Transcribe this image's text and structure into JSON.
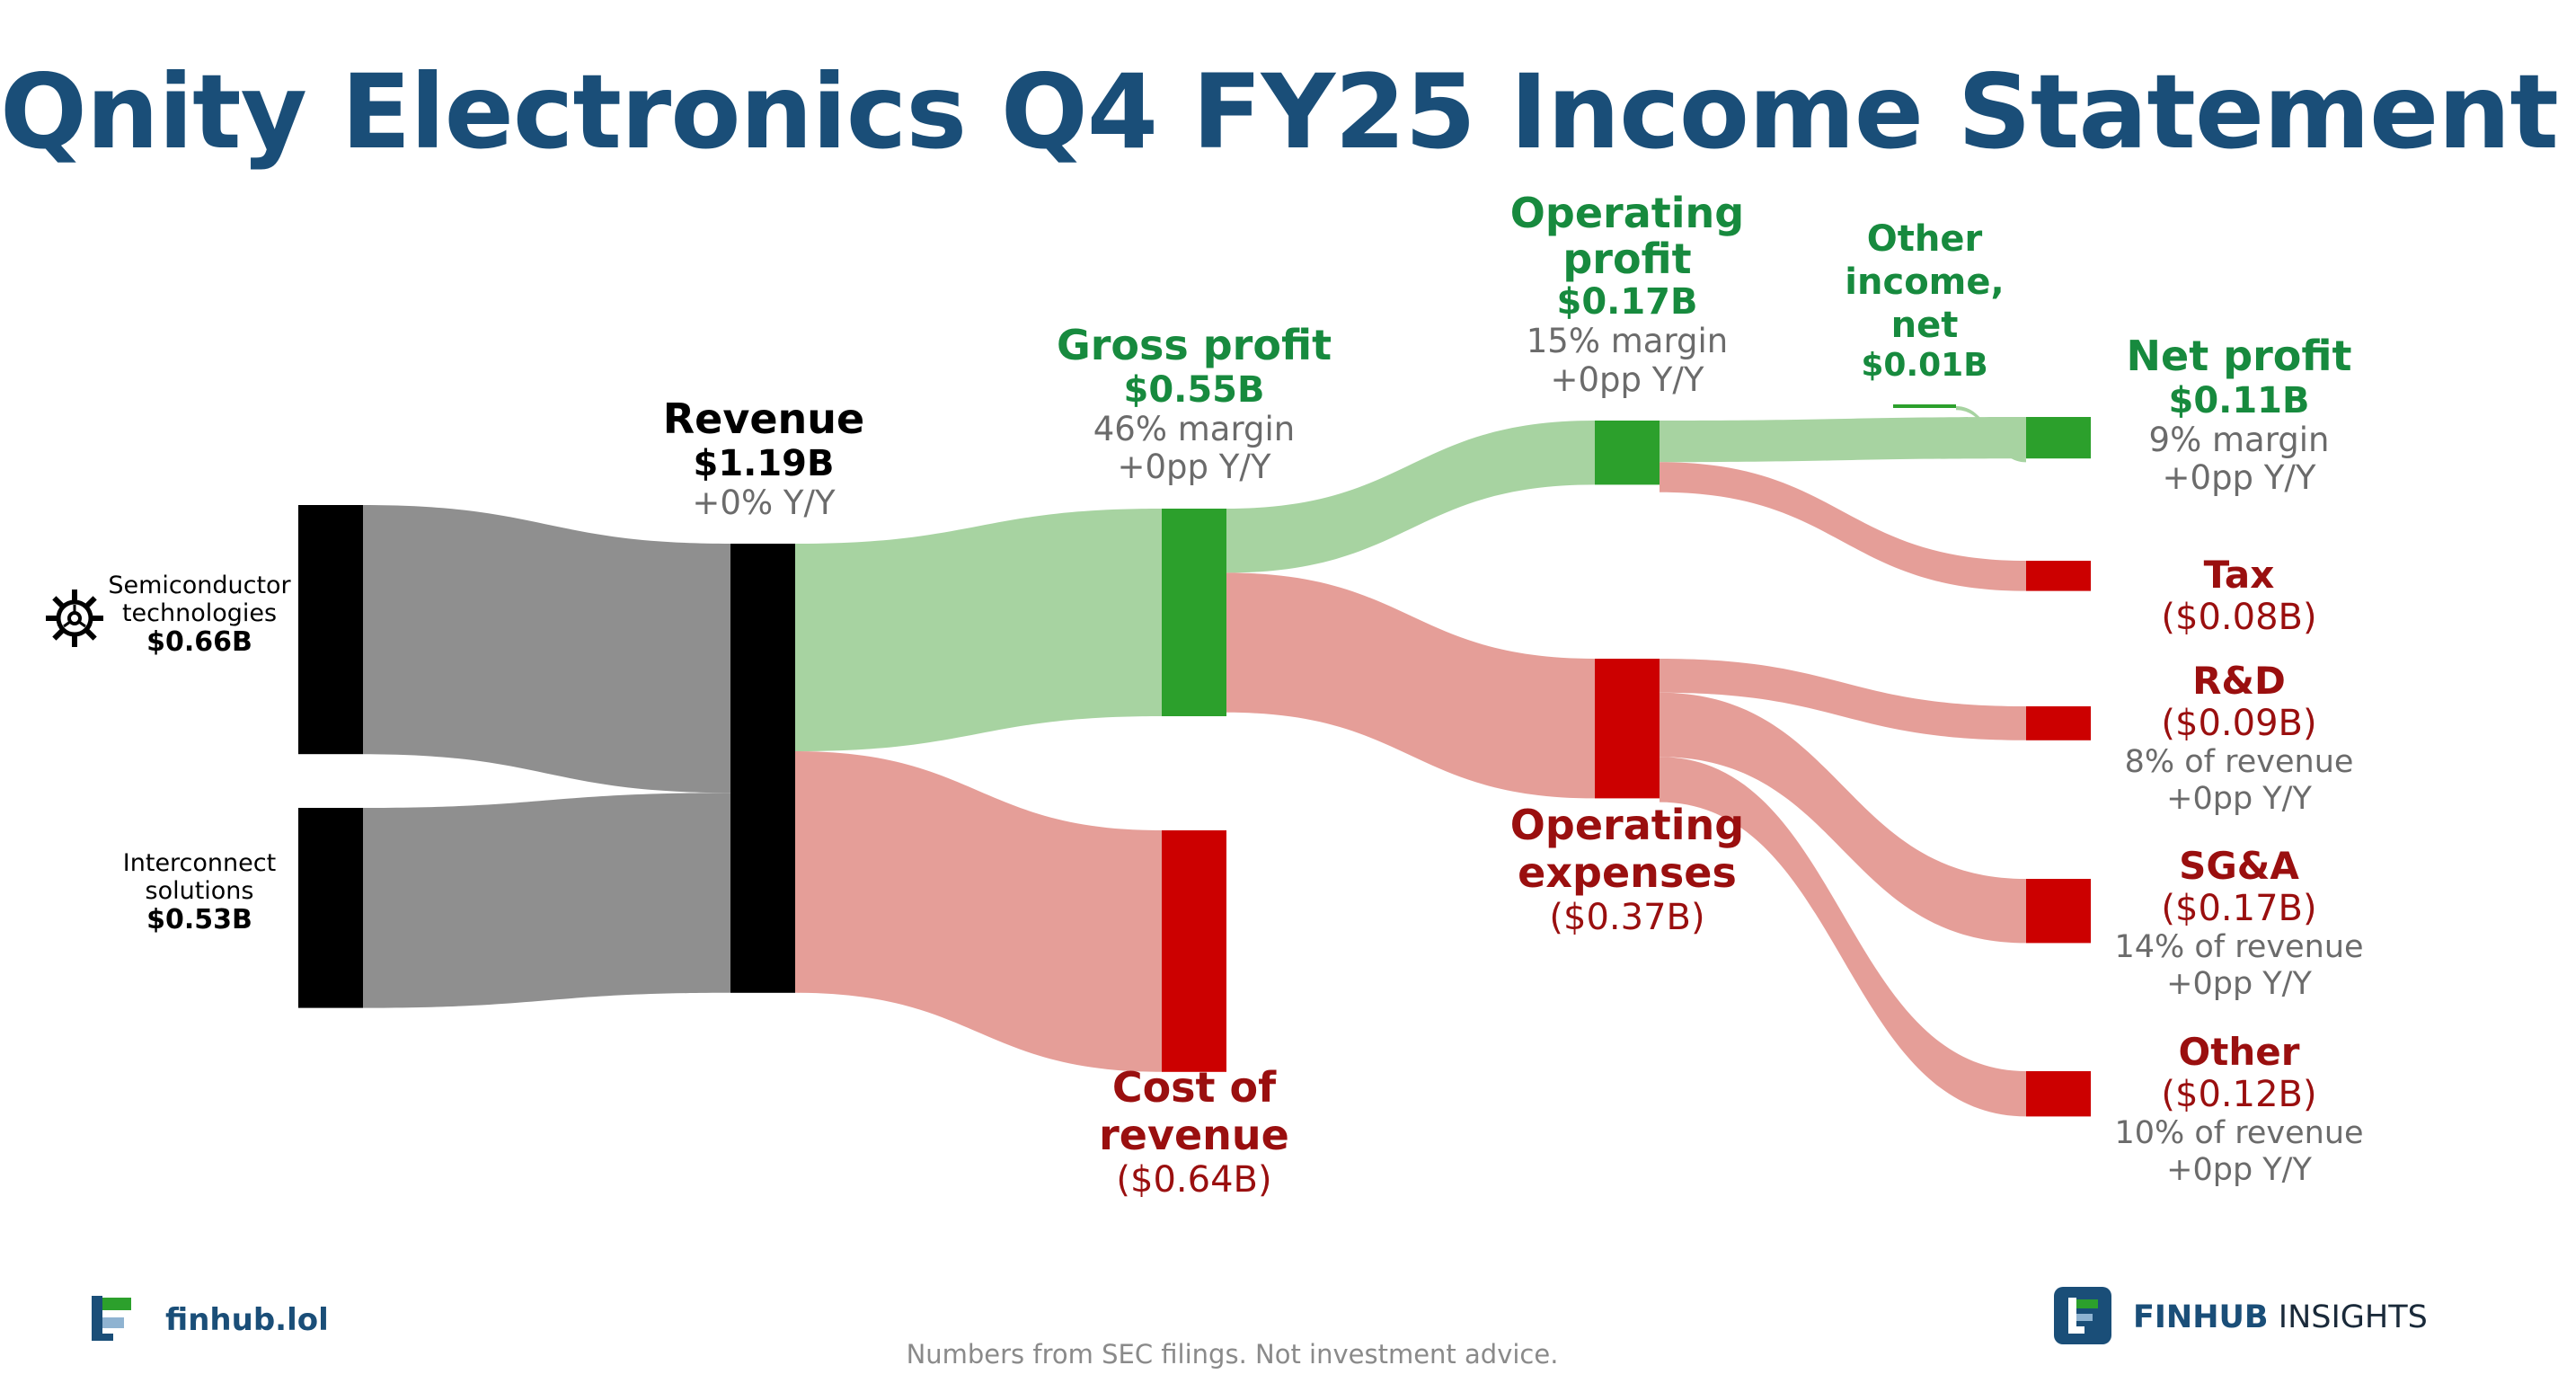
{
  "title": "Qnity Electronics Q4 FY25 Income Statement",
  "colors": {
    "title": "#1a4e78",
    "node_black": "#000000",
    "node_green": "#2ca02c",
    "node_red": "#cc0000",
    "link_gray": "#8f8f8f",
    "link_green": "#a7d3a1",
    "link_red": "#e59e98",
    "text_green": "#178a3e",
    "text_red": "#9a0f0f",
    "text_gray": "#6b6b6b"
  },
  "icons": {
    "segment_icon": "gear-icon",
    "logo_left": "finhub-logo-icon",
    "logo_right": "finhub-insights-logo-icon"
  },
  "chart_data": {
    "type": "sankey",
    "unit": "$B",
    "nodes": [
      {
        "id": "semi",
        "label": "Semiconductor technologies",
        "value_label": "$0.66B",
        "value": 0.66
      },
      {
        "id": "inter",
        "label": "Interconnect solutions",
        "value_label": "$0.53B",
        "value": 0.53
      },
      {
        "id": "revenue",
        "label": "Revenue",
        "value_label": "$1.19B",
        "value": 1.19,
        "sub1": "+0% Y/Y"
      },
      {
        "id": "gross",
        "label": "Gross profit",
        "value_label": "$0.55B",
        "value": 0.55,
        "sub1": "46% margin",
        "sub2": "+0pp Y/Y"
      },
      {
        "id": "cor",
        "label": "Cost of revenue",
        "value_label": "($0.64B)",
        "value": 0.64
      },
      {
        "id": "opprofit",
        "label": "Operating profit",
        "value_label": "$0.17B",
        "value": 0.17,
        "sub1": "15% margin",
        "sub2": "+0pp Y/Y"
      },
      {
        "id": "opex",
        "label": "Operating expenses",
        "value_label": "($0.37B)",
        "value": 0.37
      },
      {
        "id": "otherinc",
        "label": "Other income, net",
        "value_label": "$0.01B",
        "value": 0.01
      },
      {
        "id": "net",
        "label": "Net profit",
        "value_label": "$0.11B",
        "value": 0.11,
        "sub1": "9% margin",
        "sub2": "+0pp Y/Y"
      },
      {
        "id": "tax",
        "label": "Tax",
        "value_label": "($0.08B)",
        "value": 0.08
      },
      {
        "id": "rd",
        "label": "R&D",
        "value_label": "($0.09B)",
        "value": 0.09,
        "sub1": "8% of revenue",
        "sub2": "+0pp Y/Y"
      },
      {
        "id": "sga",
        "label": "SG&A",
        "value_label": "($0.17B)",
        "value": 0.17,
        "sub1": "14% of revenue",
        "sub2": "+0pp Y/Y"
      },
      {
        "id": "other",
        "label": "Other",
        "value_label": "($0.12B)",
        "value": 0.12,
        "sub1": "10% of revenue",
        "sub2": "+0pp Y/Y"
      }
    ],
    "links": [
      {
        "source": "semi",
        "target": "revenue",
        "value": 0.66
      },
      {
        "source": "inter",
        "target": "revenue",
        "value": 0.53
      },
      {
        "source": "revenue",
        "target": "gross",
        "value": 0.55
      },
      {
        "source": "revenue",
        "target": "cor",
        "value": 0.64
      },
      {
        "source": "gross",
        "target": "opprofit",
        "value": 0.17
      },
      {
        "source": "gross",
        "target": "opex",
        "value": 0.37
      },
      {
        "source": "opprofit",
        "target": "net",
        "value": 0.11
      },
      {
        "source": "opprofit",
        "target": "tax",
        "value": 0.08
      },
      {
        "source": "otherinc",
        "target": "net",
        "value": 0.01
      },
      {
        "source": "opex",
        "target": "rd",
        "value": 0.09
      },
      {
        "source": "opex",
        "target": "sga",
        "value": 0.17
      },
      {
        "source": "opex",
        "target": "other",
        "value": 0.12
      }
    ]
  },
  "footer": {
    "note": "Numbers from SEC filings. Not investment advice.",
    "brand_left": "finhub.lol",
    "brand_right_bold": "FINHUB",
    "brand_right_rest": " INSIGHTS"
  }
}
